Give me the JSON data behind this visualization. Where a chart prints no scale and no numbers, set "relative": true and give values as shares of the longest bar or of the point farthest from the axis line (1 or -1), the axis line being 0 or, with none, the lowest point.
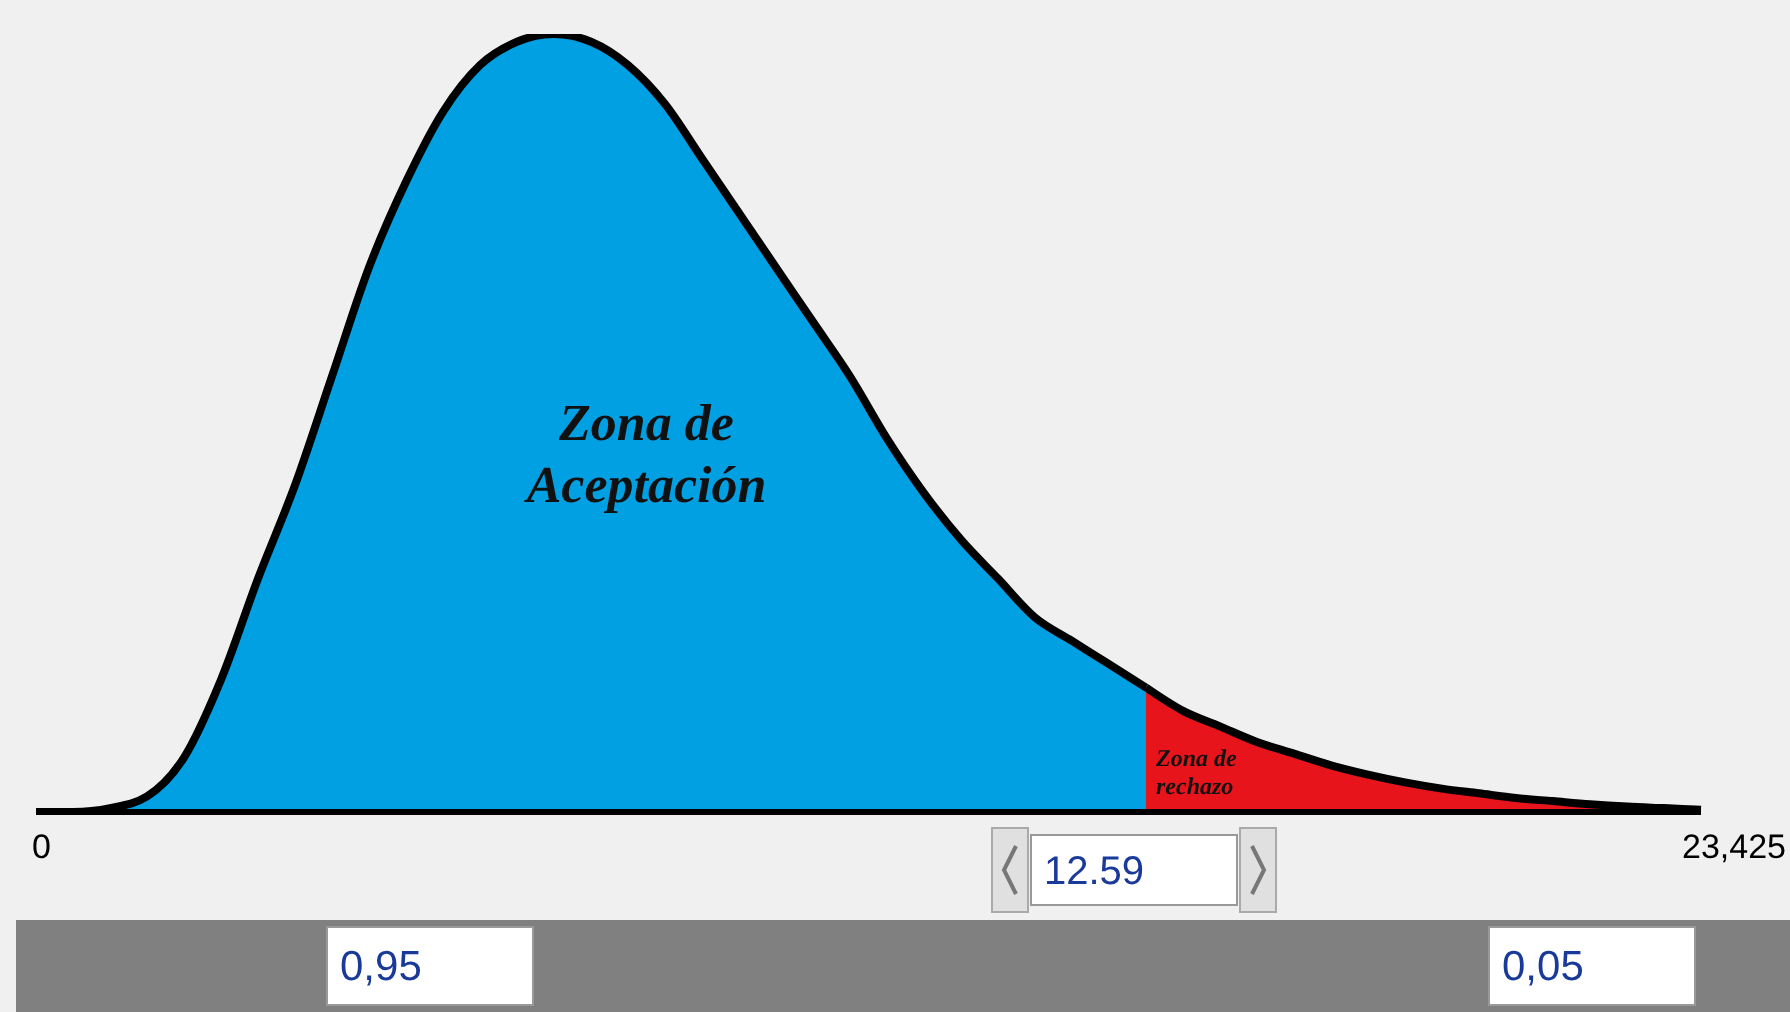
{
  "chart_data": {
    "type": "area",
    "relative": true,
    "categories": [
      null,
      null,
      null,
      null,
      null,
      null,
      null,
      null,
      null,
      null,
      null,
      null,
      null,
      null,
      null,
      null,
      null,
      null,
      null,
      null,
      null,
      null,
      null,
      null,
      null,
      null,
      null,
      null,
      null,
      null,
      null,
      null,
      null,
      null,
      null,
      null,
      null,
      null,
      null,
      null,
      null,
      null,
      null,
      null,
      null,
      null
    ],
    "series": [
      {
        "color": "#00a0e3",
        "values": [
          0,
          0,
          0.005,
          0.02,
          0.07,
          0.17,
          0.3,
          0.42,
          0.56,
          0.7,
          0.81,
          0.9,
          0.96,
          0.99,
          1,
          0.99,
          0.96,
          0.91,
          0.84,
          0.77,
          0.7,
          0.63,
          0.56,
          0.48,
          0.41,
          0.35,
          0.3,
          0.25,
          0.22,
          0.19,
          0.16,
          null,
          null,
          null,
          null,
          null,
          null,
          null,
          null,
          null,
          null,
          null,
          null,
          null,
          null,
          null
        ]
      },
      {
        "color": "#e8141c",
        "values": [
          null,
          null,
          null,
          null,
          null,
          null,
          null,
          null,
          null,
          null,
          null,
          null,
          null,
          null,
          null,
          null,
          null,
          null,
          null,
          null,
          null,
          null,
          null,
          null,
          null,
          null,
          null,
          null,
          null,
          null,
          0.16,
          0.13,
          0.11,
          0.09,
          0.075,
          0.06,
          0.048,
          0.038,
          0.03,
          0.024,
          0.018,
          0.014,
          0.01,
          0.007,
          0.005,
          0.003
        ]
      }
    ],
    "annotations": [
      "Zona de Aceptación",
      "Zona de rechazo",
      "0",
      "23,425",
      "12.59",
      "0,95",
      "0,05"
    ],
    "grid": false
  }
}
